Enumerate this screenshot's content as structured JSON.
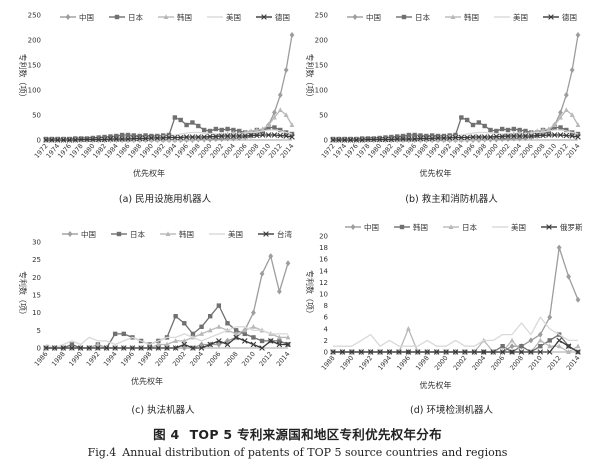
{
  "figure": {
    "caption_cn_label": "图 4",
    "caption_cn_text": "TOP 5 专利来源国和地区专利优先权年分布",
    "caption_en_label": "Fig.4",
    "caption_en_text": "Annual distribution of patents of TOP 5 source countries and regions"
  },
  "styles": {
    "colors": [
      "#9d9d9d",
      "#707070",
      "#b8b8b8",
      "#d9d9d9",
      "#3a3a3a"
    ],
    "markers": [
      "diamond",
      "square",
      "triangle",
      "none",
      "x"
    ]
  },
  "chart_data": [
    {
      "type": "line",
      "caption": "(a)  民用设施用机器人",
      "xlabel": "优先权年",
      "ylabel": "专利数（项）",
      "ylim": [
        0,
        250
      ],
      "yticks": [
        0,
        50,
        100,
        150,
        200,
        250
      ],
      "xticks": [
        "1972",
        "1974",
        "1976",
        "1978",
        "1980",
        "1982",
        "1984",
        "1986",
        "1988",
        "1990",
        "1992",
        "1994",
        "1996",
        "1998",
        "2000",
        "2002",
        "2004",
        "2006",
        "2008",
        "2010",
        "2012",
        "2014"
      ],
      "x": [
        1972,
        1973,
        1974,
        1975,
        1976,
        1977,
        1978,
        1979,
        1980,
        1981,
        1982,
        1983,
        1984,
        1985,
        1986,
        1987,
        1988,
        1989,
        1990,
        1991,
        1992,
        1993,
        1994,
        1995,
        1996,
        1997,
        1998,
        1999,
        2000,
        2001,
        2002,
        2003,
        2004,
        2005,
        2006,
        2007,
        2008,
        2009,
        2010,
        2011,
        2012,
        2013,
        2014
      ],
      "legend_position": "top",
      "series": [
        {
          "name": "中国",
          "values": [
            0,
            0,
            0,
            0,
            0,
            0,
            0,
            0,
            0,
            0,
            0,
            0,
            0,
            0,
            0,
            0,
            0,
            0,
            0,
            0,
            0,
            0,
            0,
            0,
            0,
            0,
            1,
            1,
            1,
            2,
            2,
            3,
            3,
            4,
            6,
            8,
            12,
            18,
            30,
            55,
            90,
            140,
            210
          ]
        },
        {
          "name": "日本",
          "values": [
            2,
            2,
            2,
            2,
            2,
            3,
            3,
            3,
            4,
            5,
            6,
            7,
            8,
            10,
            10,
            9,
            8,
            9,
            8,
            8,
            9,
            10,
            45,
            40,
            30,
            35,
            28,
            20,
            18,
            22,
            20,
            22,
            20,
            18,
            15,
            15,
            20,
            18,
            25,
            25,
            20,
            15,
            12
          ]
        },
        {
          "name": "韩国",
          "values": [
            0,
            0,
            0,
            0,
            0,
            0,
            0,
            0,
            0,
            0,
            0,
            0,
            0,
            0,
            0,
            0,
            0,
            0,
            0,
            0,
            0,
            0,
            0,
            1,
            1,
            1,
            2,
            3,
            5,
            8,
            10,
            12,
            14,
            12,
            15,
            18,
            20,
            22,
            30,
            45,
            60,
            50,
            30
          ]
        },
        {
          "name": "美国",
          "values": [
            1,
            1,
            1,
            1,
            1,
            1,
            2,
            2,
            2,
            2,
            3,
            3,
            3,
            4,
            4,
            5,
            5,
            6,
            6,
            7,
            8,
            8,
            10,
            12,
            14,
            15,
            15,
            14,
            13,
            12,
            12,
            11,
            12,
            13,
            14,
            15,
            16,
            18,
            20,
            20,
            18,
            15,
            12
          ]
        },
        {
          "name": "德国",
          "values": [
            0,
            0,
            0,
            0,
            0,
            0,
            1,
            1,
            1,
            1,
            1,
            2,
            2,
            2,
            2,
            3,
            3,
            3,
            4,
            4,
            4,
            5,
            5,
            5,
            6,
            6,
            6,
            6,
            7,
            7,
            8,
            8,
            8,
            8,
            8,
            9,
            9,
            10,
            10,
            10,
            9,
            8,
            6
          ]
        }
      ]
    },
    {
      "type": "line",
      "caption": "(b)  救主和消防机器人",
      "xlabel": "优先权年",
      "ylabel": "专利数（项）",
      "ylim": [
        0,
        250
      ],
      "yticks": [
        0,
        50,
        100,
        150,
        200,
        250
      ],
      "xticks": [
        "1972",
        "1974",
        "1976",
        "1978",
        "1980",
        "1982",
        "1984",
        "1986",
        "1988",
        "1990",
        "1992",
        "1994",
        "1996",
        "1998",
        "2000",
        "2002",
        "2004",
        "2006",
        "2008",
        "2010",
        "2012",
        "2014"
      ],
      "x": [
        1972,
        1973,
        1974,
        1975,
        1976,
        1977,
        1978,
        1979,
        1980,
        1981,
        1982,
        1983,
        1984,
        1985,
        1986,
        1987,
        1988,
        1989,
        1990,
        1991,
        1992,
        1993,
        1994,
        1995,
        1996,
        1997,
        1998,
        1999,
        2000,
        2001,
        2002,
        2003,
        2004,
        2005,
        2006,
        2007,
        2008,
        2009,
        2010,
        2011,
        2012,
        2013,
        2014
      ],
      "legend_position": "top",
      "series": [
        {
          "name": "中国",
          "values": [
            0,
            0,
            0,
            0,
            0,
            0,
            0,
            0,
            0,
            0,
            0,
            0,
            0,
            0,
            0,
            0,
            0,
            0,
            0,
            0,
            0,
            0,
            0,
            0,
            0,
            0,
            1,
            1,
            1,
            2,
            2,
            3,
            3,
            4,
            6,
            8,
            12,
            18,
            30,
            55,
            90,
            140,
            210
          ]
        },
        {
          "name": "日本",
          "values": [
            2,
            2,
            2,
            2,
            2,
            3,
            3,
            3,
            4,
            5,
            6,
            7,
            8,
            10,
            10,
            9,
            8,
            9,
            8,
            8,
            9,
            10,
            45,
            40,
            30,
            35,
            28,
            20,
            18,
            22,
            20,
            22,
            20,
            18,
            15,
            15,
            20,
            18,
            25,
            25,
            20,
            15,
            12
          ]
        },
        {
          "name": "韩国",
          "values": [
            0,
            0,
            0,
            0,
            0,
            0,
            0,
            0,
            0,
            0,
            0,
            0,
            0,
            0,
            0,
            0,
            0,
            0,
            0,
            0,
            0,
            0,
            0,
            1,
            1,
            1,
            2,
            3,
            5,
            8,
            10,
            12,
            14,
            12,
            15,
            18,
            20,
            22,
            30,
            45,
            60,
            50,
            30
          ]
        },
        {
          "name": "美国",
          "values": [
            1,
            1,
            1,
            1,
            1,
            1,
            2,
            2,
            2,
            2,
            3,
            3,
            3,
            4,
            4,
            5,
            5,
            6,
            6,
            7,
            8,
            8,
            10,
            12,
            14,
            15,
            15,
            14,
            13,
            12,
            12,
            11,
            12,
            13,
            14,
            15,
            16,
            18,
            20,
            20,
            18,
            15,
            12
          ]
        },
        {
          "name": "德国",
          "values": [
            0,
            0,
            0,
            0,
            0,
            0,
            1,
            1,
            1,
            1,
            1,
            2,
            2,
            2,
            2,
            3,
            3,
            3,
            4,
            4,
            4,
            5,
            5,
            5,
            6,
            6,
            6,
            6,
            7,
            7,
            8,
            8,
            8,
            8,
            8,
            9,
            9,
            10,
            10,
            10,
            9,
            8,
            6
          ]
        }
      ]
    },
    {
      "type": "line",
      "caption": "(c)  执法机器人",
      "xlabel": "优先权年",
      "ylabel": "专利数（项）",
      "ylim": [
        0,
        30
      ],
      "yticks": [
        0,
        5,
        10,
        15,
        20,
        25,
        30
      ],
      "xticks": [
        "1986",
        "1988",
        "1990",
        "1992",
        "1994",
        "1996",
        "1998",
        "2000",
        "2002",
        "2004",
        "2006",
        "2008",
        "2010",
        "2012",
        "2014"
      ],
      "x": [
        1986,
        1987,
        1988,
        1989,
        1990,
        1991,
        1992,
        1993,
        1994,
        1995,
        1996,
        1997,
        1998,
        1999,
        2000,
        2001,
        2002,
        2003,
        2004,
        2005,
        2006,
        2007,
        2008,
        2009,
        2010,
        2011,
        2012,
        2013,
        2014
      ],
      "legend_position": "top",
      "series": [
        {
          "name": "中国",
          "values": [
            0,
            0,
            0,
            0,
            0,
            0,
            0,
            0,
            0,
            0,
            0,
            0,
            0,
            0,
            0,
            0,
            0,
            0,
            1,
            1,
            1,
            2,
            3,
            5,
            10,
            21,
            26,
            16,
            24
          ]
        },
        {
          "name": "日本",
          "values": [
            0,
            0,
            0,
            1,
            0,
            0,
            1,
            0,
            4,
            4,
            3,
            2,
            1,
            2,
            3,
            9,
            7,
            4,
            6,
            9,
            12,
            7,
            5,
            4,
            3,
            2,
            2,
            2,
            1
          ]
        },
        {
          "name": "韩国",
          "values": [
            0,
            0,
            0,
            0,
            0,
            0,
            1,
            0,
            0,
            0,
            0,
            0,
            0,
            1,
            1,
            2,
            2,
            3,
            4,
            5,
            6,
            5,
            4,
            5,
            6,
            5,
            4,
            3,
            3
          ]
        },
        {
          "name": "美国",
          "values": [
            1,
            0,
            1,
            2,
            1,
            3,
            2,
            2,
            1,
            2,
            3,
            2,
            1,
            2,
            3,
            3,
            4,
            3,
            2,
            3,
            4,
            5,
            6,
            6,
            5,
            5,
            4,
            4,
            4
          ]
        },
        {
          "name": "台湾",
          "values": [
            0,
            0,
            0,
            0,
            0,
            0,
            0,
            0,
            0,
            0,
            0,
            0,
            0,
            0,
            0,
            0,
            1,
            0,
            0,
            1,
            2,
            1,
            3,
            2,
            1,
            0,
            2,
            1,
            1
          ]
        }
      ]
    },
    {
      "type": "line",
      "caption": "(d)  环境检测机器人",
      "xlabel": "优先权年",
      "ylabel": "专利数（项）",
      "ylim": [
        0,
        20
      ],
      "yticks": [
        0,
        2,
        4,
        6,
        8,
        10,
        12,
        14,
        16,
        18,
        20
      ],
      "xticks": [
        "1988",
        "1990",
        "1992",
        "1994",
        "1996",
        "1998",
        "2000",
        "2002",
        "2004",
        "2006",
        "2008",
        "2010",
        "2012",
        "2014"
      ],
      "x": [
        1988,
        1989,
        1990,
        1991,
        1992,
        1993,
        1994,
        1995,
        1996,
        1997,
        1998,
        1999,
        2000,
        2001,
        2002,
        2003,
        2004,
        2005,
        2006,
        2007,
        2008,
        2009,
        2010,
        2011,
        2012,
        2013,
        2014
      ],
      "legend_position": "top",
      "series": [
        {
          "name": "中国",
          "values": [
            0,
            0,
            0,
            0,
            0,
            0,
            0,
            0,
            0,
            0,
            0,
            0,
            0,
            0,
            0,
            0,
            0,
            0,
            0,
            1,
            1,
            2,
            3,
            6,
            18,
            13,
            9
          ]
        },
        {
          "name": "韩国",
          "values": [
            0,
            0,
            0,
            0,
            0,
            0,
            0,
            0,
            0,
            0,
            0,
            0,
            0,
            0,
            0,
            0,
            0,
            0,
            1,
            0,
            1,
            0,
            1,
            2,
            3,
            1,
            0
          ]
        },
        {
          "name": "日本",
          "values": [
            0,
            0,
            0,
            0,
            0,
            0,
            0,
            0,
            4,
            0,
            0,
            0,
            0,
            0,
            0,
            0,
            2,
            0,
            0,
            2,
            0,
            0,
            2,
            1,
            1,
            0,
            1
          ]
        },
        {
          "name": "美国",
          "values": [
            1,
            1,
            1,
            2,
            3,
            1,
            2,
            1,
            1,
            1,
            2,
            1,
            1,
            2,
            1,
            1,
            2,
            2,
            3,
            3,
            5,
            3,
            6,
            4,
            3,
            2,
            2
          ]
        },
        {
          "name": "俄罗斯",
          "values": [
            0,
            0,
            0,
            0,
            0,
            0,
            0,
            0,
            0,
            0,
            0,
            0,
            0,
            0,
            0,
            0,
            0,
            0,
            0,
            0,
            0,
            0,
            0,
            0,
            2,
            1,
            0
          ]
        }
      ]
    }
  ]
}
